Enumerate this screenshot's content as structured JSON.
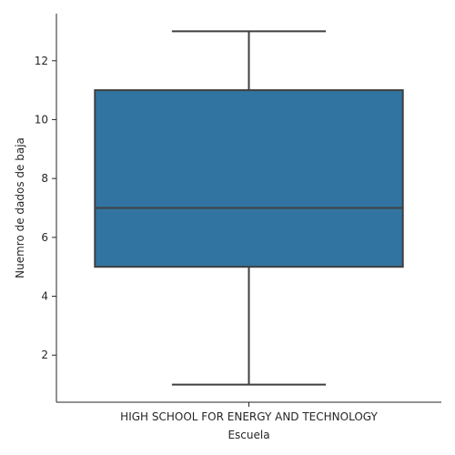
{
  "chart_data": {
    "type": "box",
    "xlabel": "Escuela",
    "ylabel": "Nuemro de dados de baja",
    "categories": [
      "HIGH SCHOOL FOR ENERGY AND TECHNOLOGY"
    ],
    "boxes": [
      {
        "category": "HIGH SCHOOL FOR ENERGY AND TECHNOLOGY",
        "min": 1,
        "q1": 5,
        "median": 7,
        "q3": 11,
        "max": 13
      }
    ],
    "yticks": [
      2,
      4,
      6,
      8,
      10,
      12
    ],
    "ylim": [
      0.4,
      13.6
    ],
    "box_color": "#3274a1",
    "line_color": "#3f3f3f",
    "grid": false,
    "legend": "none"
  }
}
